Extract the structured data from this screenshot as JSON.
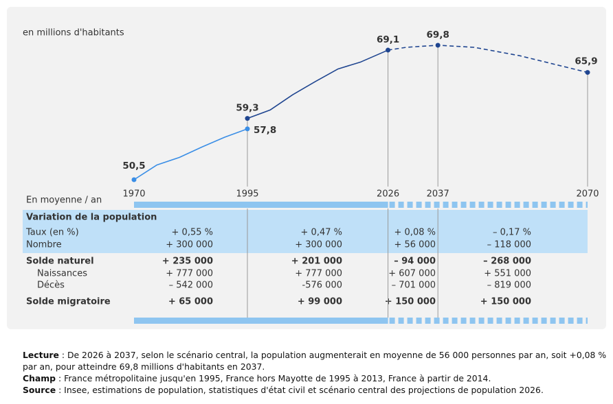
{
  "chart_data": {
    "type": "line",
    "subtitle": "en millions d'habitants",
    "xlim": [
      1970,
      2070
    ],
    "ylim": [
      48,
      72
    ],
    "xticks": [
      1970,
      1995,
      2026,
      2037,
      2070
    ],
    "series": [
      {
        "color": "#3a8ee6",
        "style": "solid",
        "x": [
          1970,
          1975,
          1980,
          1985,
          1990,
          1995
        ],
        "values": [
          50.5,
          52.6,
          53.7,
          55.2,
          56.6,
          57.8
        ],
        "value_labels": [
          "50,5",
          null,
          null,
          null,
          null,
          "57,8"
        ]
      },
      {
        "color": "#1f4590",
        "style": "solid",
        "x": [
          1995,
          2000,
          2005,
          2010,
          2015,
          2020,
          2026
        ],
        "values": [
          59.3,
          60.5,
          62.7,
          64.6,
          66.4,
          67.4,
          69.1
        ],
        "value_labels": [
          "59,3",
          null,
          null,
          null,
          null,
          null,
          "69,1"
        ]
      },
      {
        "color": "#1f4590",
        "style": "dashed",
        "x": [
          2026,
          2030,
          2037,
          2045,
          2055,
          2070
        ],
        "values": [
          69.1,
          69.5,
          69.8,
          69.5,
          68.3,
          65.9
        ],
        "value_labels": [
          null,
          null,
          "69,8",
          null,
          null,
          "65,9"
        ]
      }
    ]
  },
  "table": {
    "corner": "En moyenne / an",
    "section": "Variation de la population",
    "rows": [
      {
        "label": "Taux (en %)",
        "bold": false,
        "indent": false,
        "shaded": true,
        "cells": [
          "+ 0,55 %",
          "+ 0,47 %",
          "+ 0,08 %",
          "– 0,17 %"
        ]
      },
      {
        "label": "Nombre",
        "bold": false,
        "indent": false,
        "shaded": true,
        "cells": [
          "+ 300 000",
          "+ 300 000",
          "+ 56 000",
          "– 118 000"
        ]
      },
      {
        "label": "Solde naturel",
        "bold": true,
        "indent": false,
        "shaded": false,
        "cells": [
          "+ 235 000",
          "+ 201 000",
          "– 94 000",
          "– 268 000"
        ]
      },
      {
        "label": "Naissances",
        "bold": false,
        "indent": true,
        "shaded": false,
        "cells": [
          "+ 777 000",
          "+ 777 000",
          "+ 607 000",
          "+ 551 000"
        ]
      },
      {
        "label": "Décès",
        "bold": false,
        "indent": true,
        "shaded": false,
        "cells": [
          "– 542 000",
          "-576 000",
          "– 701 000",
          "– 819 000"
        ]
      },
      {
        "label": "Solde migratoire",
        "bold": true,
        "indent": false,
        "shaded": false,
        "cells": [
          "+ 65 000",
          "+ 99 000",
          "+ 150 000",
          "+ 150 000"
        ]
      }
    ]
  },
  "notes": [
    {
      "label": "Lecture",
      "text": " : De 2026 à 2037, selon le scénario central, la population augmenterait en moyenne de 56 000 personnes par an, soit +0,08 % par an, pour atteindre 69,8 millions d'habitants en 2037."
    },
    {
      "label": "Champ",
      "text": " : France métropolitaine jusqu'en 1995, France hors Mayotte de 1995 à 2013, France à partir de 2014."
    },
    {
      "label": "Source",
      "text": " : Insee, estimations de population, statistiques d'état civil et scénario central des projections de population 2026."
    }
  ]
}
